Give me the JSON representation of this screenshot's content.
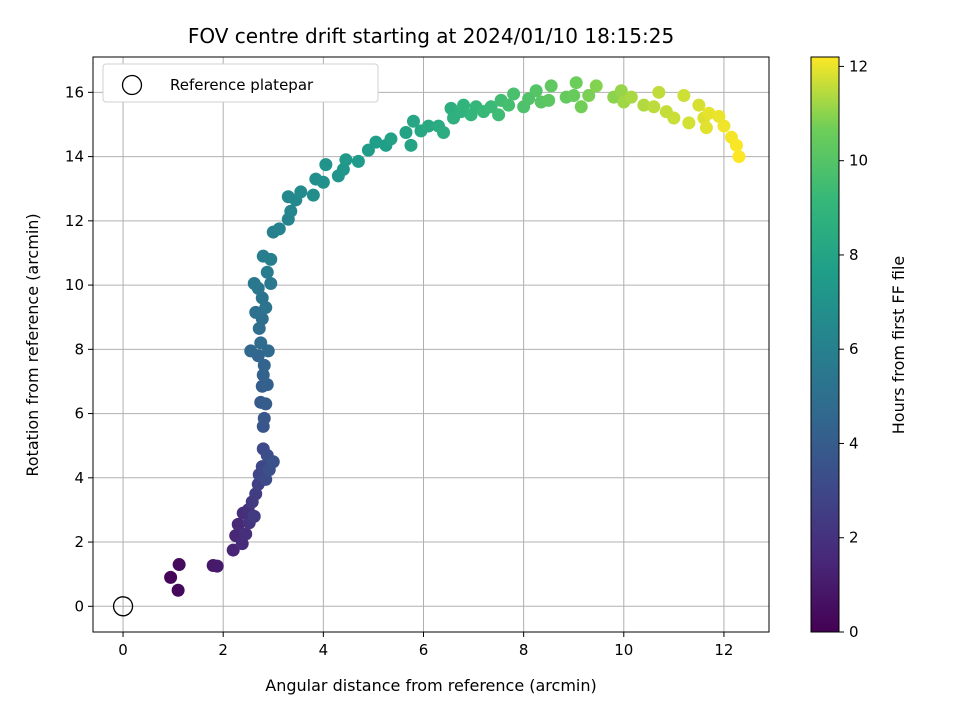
{
  "chart_data": {
    "type": "scatter",
    "title": "FOV centre drift starting at 2024/01/10 18:15:25",
    "xlabel": "Angular distance from reference (arcmin)",
    "ylabel": "Rotation from reference (arcmin)",
    "xlim": [
      -0.6,
      12.9
    ],
    "ylim": [
      -0.8,
      17.1
    ],
    "xticks": [
      0,
      2,
      4,
      6,
      8,
      10,
      12
    ],
    "yticks": [
      0,
      2,
      4,
      6,
      8,
      10,
      12,
      14,
      16
    ],
    "grid": true,
    "legend": {
      "placement": "upper-left",
      "entries": [
        "Reference platepar"
      ]
    },
    "reference_point": {
      "x": 0,
      "y": 0,
      "label": "Reference platepar"
    },
    "colorbar": {
      "label": "Hours from first FF file",
      "range": [
        0,
        12.2
      ],
      "ticks": [
        0,
        2,
        4,
        6,
        8,
        10,
        12
      ],
      "colormap": "viridis"
    },
    "points": [
      {
        "x": 0.95,
        "y": 0.9,
        "t": 0.2
      },
      {
        "x": 1.1,
        "y": 0.5,
        "t": 0.3
      },
      {
        "x": 1.12,
        "y": 1.3,
        "t": 0.4
      },
      {
        "x": 1.8,
        "y": 1.27,
        "t": 0.9
      },
      {
        "x": 1.88,
        "y": 1.25,
        "t": 1.0
      },
      {
        "x": 2.2,
        "y": 1.75,
        "t": 1.4
      },
      {
        "x": 2.25,
        "y": 2.2,
        "t": 1.5
      },
      {
        "x": 2.3,
        "y": 2.55,
        "t": 1.6
      },
      {
        "x": 2.38,
        "y": 1.95,
        "t": 1.7
      },
      {
        "x": 2.4,
        "y": 2.9,
        "t": 1.8
      },
      {
        "x": 2.45,
        "y": 2.25,
        "t": 1.9
      },
      {
        "x": 2.5,
        "y": 3.0,
        "t": 2.0
      },
      {
        "x": 2.52,
        "y": 2.6,
        "t": 2.1
      },
      {
        "x": 2.58,
        "y": 3.25,
        "t": 2.3
      },
      {
        "x": 2.62,
        "y": 2.8,
        "t": 2.4
      },
      {
        "x": 2.65,
        "y": 3.5,
        "t": 2.5
      },
      {
        "x": 2.7,
        "y": 3.8,
        "t": 2.7
      },
      {
        "x": 2.72,
        "y": 4.1,
        "t": 2.9
      },
      {
        "x": 2.78,
        "y": 4.35,
        "t": 3.0
      },
      {
        "x": 2.8,
        "y": 4.9,
        "t": 3.1
      },
      {
        "x": 2.85,
        "y": 3.95,
        "t": 3.2
      },
      {
        "x": 2.88,
        "y": 4.7,
        "t": 3.3
      },
      {
        "x": 2.92,
        "y": 4.25,
        "t": 3.4
      },
      {
        "x": 3.0,
        "y": 4.5,
        "t": 3.5
      },
      {
        "x": 2.8,
        "y": 5.6,
        "t": 3.7
      },
      {
        "x": 2.82,
        "y": 5.85,
        "t": 3.8
      },
      {
        "x": 2.75,
        "y": 6.35,
        "t": 3.9
      },
      {
        "x": 2.85,
        "y": 6.3,
        "t": 4.0
      },
      {
        "x": 2.78,
        "y": 6.85,
        "t": 4.1
      },
      {
        "x": 2.88,
        "y": 6.9,
        "t": 4.2
      },
      {
        "x": 2.8,
        "y": 7.2,
        "t": 4.3
      },
      {
        "x": 2.82,
        "y": 7.5,
        "t": 4.4
      },
      {
        "x": 2.7,
        "y": 7.8,
        "t": 4.5
      },
      {
        "x": 2.55,
        "y": 7.95,
        "t": 4.6
      },
      {
        "x": 2.9,
        "y": 7.95,
        "t": 4.7
      },
      {
        "x": 2.75,
        "y": 8.2,
        "t": 4.8
      },
      {
        "x": 2.72,
        "y": 8.65,
        "t": 4.9
      },
      {
        "x": 2.78,
        "y": 8.95,
        "t": 5.0
      },
      {
        "x": 2.65,
        "y": 9.15,
        "t": 5.1
      },
      {
        "x": 2.85,
        "y": 9.3,
        "t": 5.2
      },
      {
        "x": 2.78,
        "y": 9.6,
        "t": 5.3
      },
      {
        "x": 2.7,
        "y": 9.9,
        "t": 5.4
      },
      {
        "x": 2.62,
        "y": 10.05,
        "t": 5.5
      },
      {
        "x": 2.95,
        "y": 10.05,
        "t": 5.6
      },
      {
        "x": 2.88,
        "y": 10.4,
        "t": 5.7
      },
      {
        "x": 2.8,
        "y": 10.9,
        "t": 5.8
      },
      {
        "x": 2.95,
        "y": 10.8,
        "t": 5.9
      },
      {
        "x": 3.0,
        "y": 11.65,
        "t": 6.0
      },
      {
        "x": 3.12,
        "y": 11.75,
        "t": 6.1
      },
      {
        "x": 3.3,
        "y": 12.05,
        "t": 6.2
      },
      {
        "x": 3.35,
        "y": 12.3,
        "t": 6.3
      },
      {
        "x": 3.3,
        "y": 12.75,
        "t": 6.4
      },
      {
        "x": 3.45,
        "y": 12.65,
        "t": 6.5
      },
      {
        "x": 3.55,
        "y": 12.9,
        "t": 6.6
      },
      {
        "x": 3.8,
        "y": 12.8,
        "t": 6.7
      },
      {
        "x": 3.85,
        "y": 13.3,
        "t": 6.8
      },
      {
        "x": 4.0,
        "y": 13.2,
        "t": 6.9
      },
      {
        "x": 4.05,
        "y": 13.75,
        "t": 7.0
      },
      {
        "x": 4.3,
        "y": 13.4,
        "t": 7.1
      },
      {
        "x": 4.4,
        "y": 13.6,
        "t": 7.2
      },
      {
        "x": 4.45,
        "y": 13.9,
        "t": 7.3
      },
      {
        "x": 4.7,
        "y": 13.85,
        "t": 7.4
      },
      {
        "x": 4.9,
        "y": 14.2,
        "t": 7.5
      },
      {
        "x": 5.05,
        "y": 14.45,
        "t": 7.6
      },
      {
        "x": 5.25,
        "y": 14.35,
        "t": 7.7
      },
      {
        "x": 5.35,
        "y": 14.55,
        "t": 7.8
      },
      {
        "x": 5.65,
        "y": 14.75,
        "t": 7.9
      },
      {
        "x": 5.75,
        "y": 14.35,
        "t": 8.0
      },
      {
        "x": 5.8,
        "y": 15.1,
        "t": 8.1
      },
      {
        "x": 5.95,
        "y": 14.8,
        "t": 8.2
      },
      {
        "x": 6.1,
        "y": 14.95,
        "t": 8.3
      },
      {
        "x": 6.3,
        "y": 14.95,
        "t": 8.4
      },
      {
        "x": 6.4,
        "y": 14.75,
        "t": 8.5
      },
      {
        "x": 6.55,
        "y": 15.5,
        "t": 8.6
      },
      {
        "x": 6.6,
        "y": 15.2,
        "t": 8.7
      },
      {
        "x": 6.75,
        "y": 15.4,
        "t": 8.8
      },
      {
        "x": 6.8,
        "y": 15.6,
        "t": 8.9
      },
      {
        "x": 6.95,
        "y": 15.3,
        "t": 9.0
      },
      {
        "x": 7.05,
        "y": 15.55,
        "t": 9.1
      },
      {
        "x": 7.2,
        "y": 15.4,
        "t": 9.2
      },
      {
        "x": 7.35,
        "y": 15.55,
        "t": 9.3
      },
      {
        "x": 7.5,
        "y": 15.3,
        "t": 9.4
      },
      {
        "x": 7.55,
        "y": 15.75,
        "t": 9.5
      },
      {
        "x": 7.7,
        "y": 15.6,
        "t": 9.6
      },
      {
        "x": 7.8,
        "y": 15.95,
        "t": 9.7
      },
      {
        "x": 8.0,
        "y": 15.55,
        "t": 9.8
      },
      {
        "x": 8.1,
        "y": 15.8,
        "t": 9.9
      },
      {
        "x": 8.25,
        "y": 16.05,
        "t": 10.0
      },
      {
        "x": 8.35,
        "y": 15.7,
        "t": 10.1
      },
      {
        "x": 8.5,
        "y": 15.75,
        "t": 10.2
      },
      {
        "x": 8.55,
        "y": 16.2,
        "t": 10.3
      },
      {
        "x": 8.85,
        "y": 15.85,
        "t": 10.4
      },
      {
        "x": 9.0,
        "y": 15.9,
        "t": 10.5
      },
      {
        "x": 9.05,
        "y": 16.3,
        "t": 10.6
      },
      {
        "x": 9.15,
        "y": 15.55,
        "t": 10.7
      },
      {
        "x": 9.3,
        "y": 15.9,
        "t": 10.8
      },
      {
        "x": 9.45,
        "y": 16.2,
        "t": 10.9
      },
      {
        "x": 9.8,
        "y": 15.85,
        "t": 11.0
      },
      {
        "x": 9.95,
        "y": 16.05,
        "t": 11.1
      },
      {
        "x": 10.0,
        "y": 15.7,
        "t": 11.2
      },
      {
        "x": 10.15,
        "y": 15.85,
        "t": 11.3
      },
      {
        "x": 10.4,
        "y": 15.6,
        "t": 11.4
      },
      {
        "x": 10.6,
        "y": 15.55,
        "t": 11.5
      },
      {
        "x": 10.7,
        "y": 16.0,
        "t": 11.55
      },
      {
        "x": 10.85,
        "y": 15.4,
        "t": 11.6
      },
      {
        "x": 11.0,
        "y": 15.2,
        "t": 11.65
      },
      {
        "x": 11.2,
        "y": 15.9,
        "t": 11.7
      },
      {
        "x": 11.3,
        "y": 15.05,
        "t": 11.75
      },
      {
        "x": 11.5,
        "y": 15.6,
        "t": 11.8
      },
      {
        "x": 11.6,
        "y": 15.2,
        "t": 11.85
      },
      {
        "x": 11.65,
        "y": 14.9,
        "t": 11.9
      },
      {
        "x": 11.7,
        "y": 15.35,
        "t": 11.95
      },
      {
        "x": 11.9,
        "y": 15.25,
        "t": 12.0
      },
      {
        "x": 12.0,
        "y": 14.95,
        "t": 12.05
      },
      {
        "x": 12.15,
        "y": 14.6,
        "t": 12.1
      },
      {
        "x": 12.25,
        "y": 14.35,
        "t": 12.15
      },
      {
        "x": 12.3,
        "y": 14.0,
        "t": 12.2
      }
    ]
  }
}
